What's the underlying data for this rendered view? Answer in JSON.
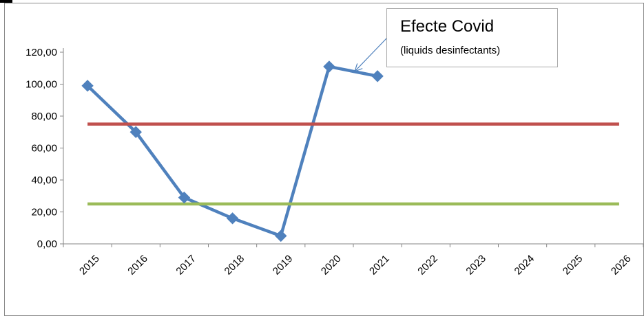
{
  "chart_data": {
    "type": "line",
    "categories": [
      "2015",
      "2016",
      "2017",
      "2018",
      "2019",
      "2020",
      "2021",
      "2022",
      "2023",
      "2024",
      "2025",
      "2026"
    ],
    "series": [
      {
        "values": [
          99,
          70,
          29,
          16,
          5,
          111,
          105,
          null,
          null,
          null,
          null,
          null
        ],
        "color": "#4f81bd",
        "marker": "diamond"
      },
      {
        "values": [
          75,
          75,
          75,
          75,
          75,
          75,
          75,
          75,
          75,
          75,
          75,
          75
        ],
        "color": "#c0504d"
      },
      {
        "values": [
          25,
          25,
          25,
          25,
          25,
          25,
          25,
          25,
          25,
          25,
          25,
          25
        ],
        "color": "#9bbb59"
      }
    ],
    "y_ticks": [
      "0,00",
      "20,00",
      "40,00",
      "60,00",
      "80,00",
      "100,00",
      "120,00"
    ],
    "ylim": [
      0,
      120
    ],
    "grid": false,
    "annotation": {
      "title": "Efecte Covid",
      "subtitle": "(liquids desinfectants)",
      "points_to": "2021"
    }
  }
}
